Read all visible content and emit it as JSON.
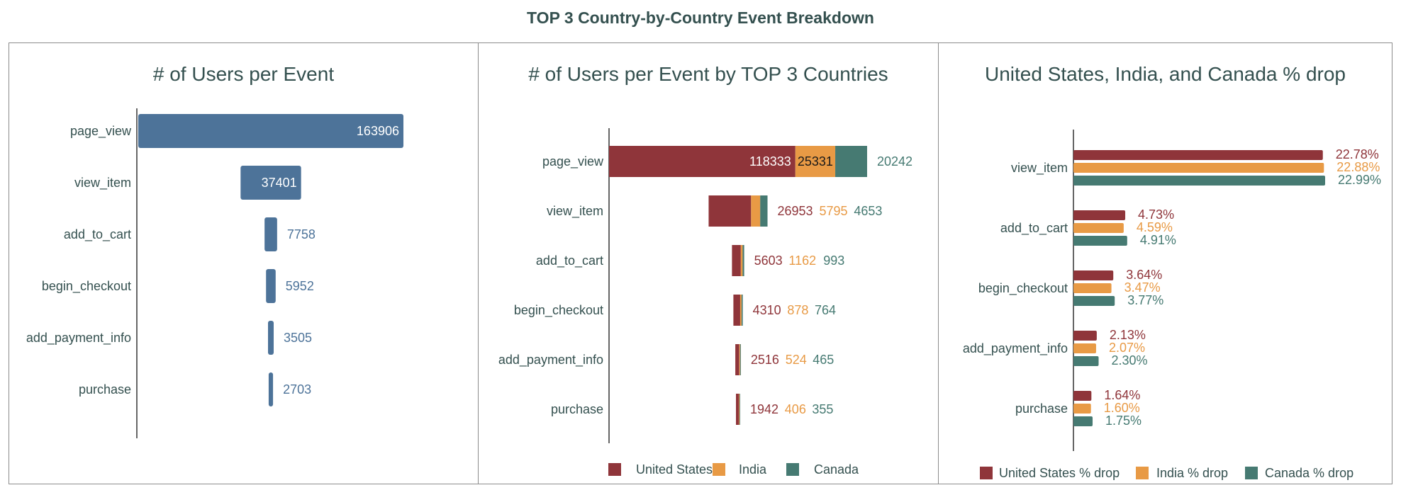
{
  "main_title": "TOP 3 Country-by-Country Event Breakdown",
  "colors": {
    "total": "#4d7399",
    "us": "#8f353a",
    "in": "#e89a45",
    "ca": "#467a72",
    "text": "#34504f"
  },
  "chart_data": [
    {
      "type": "bar",
      "orientation": "horizontal",
      "title": "# of Users per Event",
      "categories": [
        "page_view",
        "view_item",
        "add_to_cart",
        "begin_checkout",
        "add_payment_info",
        "purchase"
      ],
      "values": [
        163906,
        37401,
        7758,
        5952,
        3505,
        2703
      ],
      "labels": [
        "163906",
        "37401",
        "7758",
        "5952",
        "3505",
        "2703"
      ],
      "legend": "none",
      "grid": false
    },
    {
      "type": "bar",
      "orientation": "horizontal",
      "stacked": true,
      "title": "# of Users per Event by TOP 3 Countries",
      "categories": [
        "page_view",
        "view_item",
        "add_to_cart",
        "begin_checkout",
        "add_payment_info",
        "purchase"
      ],
      "series": [
        {
          "name": "United States",
          "color": "#8f353a",
          "values": [
            118333,
            26953,
            5603,
            4310,
            2516,
            1942
          ],
          "labels": [
            "118333",
            "26953",
            "5603",
            "4310",
            "2516",
            "1942"
          ]
        },
        {
          "name": "India",
          "color": "#e89a45",
          "values": [
            25331,
            5795,
            1162,
            878,
            524,
            406
          ],
          "labels": [
            "25331",
            "5795",
            "1162",
            "878",
            "524",
            "406"
          ]
        },
        {
          "name": "Canada",
          "color": "#467a72",
          "values": [
            20242,
            4653,
            993,
            764,
            465,
            355
          ],
          "labels": [
            "20242",
            "4653",
            "993",
            "764",
            "465",
            "355"
          ]
        }
      ],
      "legend": "bottom",
      "grid": false
    },
    {
      "type": "bar",
      "orientation": "horizontal",
      "grouped": true,
      "title": "United States, India, and Canada % drop",
      "categories": [
        "view_item",
        "add_to_cart",
        "begin_checkout",
        "add_payment_info",
        "purchase"
      ],
      "series": [
        {
          "name": "United States % drop",
          "color": "#8f353a",
          "values": [
            22.78,
            4.73,
            3.64,
            2.13,
            1.64
          ],
          "labels": [
            "22.78%",
            "4.73%",
            "3.64%",
            "2.13%",
            "1.64%"
          ]
        },
        {
          "name": "India % drop",
          "color": "#e89a45",
          "values": [
            22.88,
            4.59,
            3.47,
            2.07,
            1.6
          ],
          "labels": [
            "22.88%",
            "4.59%",
            "3.47%",
            "2.07%",
            "1.60%"
          ]
        },
        {
          "name": "Canada % drop",
          "color": "#467a72",
          "values": [
            22.99,
            4.91,
            3.77,
            2.3,
            1.75
          ],
          "labels": [
            "22.99%",
            "4.91%",
            "3.77%",
            "2.30%",
            "1.75%"
          ]
        }
      ],
      "legend": "bottom",
      "grid": false
    }
  ]
}
